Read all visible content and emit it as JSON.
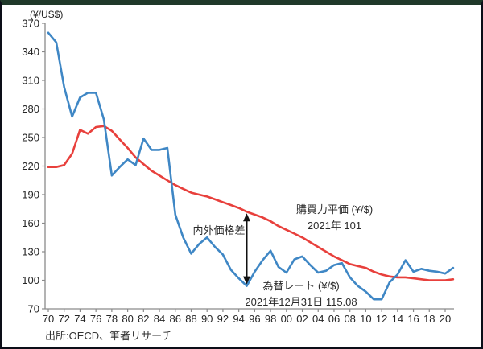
{
  "source": "出所:OECD、筆者リサーチ",
  "chart_data": {
    "type": "line",
    "title": "",
    "unit_label": "(¥/US$)",
    "xlabel": "",
    "ylabel": "(¥/US$)",
    "grid": false,
    "legend_position": "inline-annotations",
    "ylim": [
      70,
      370
    ],
    "y_ticks": [
      70,
      100,
      130,
      160,
      190,
      220,
      250,
      280,
      310,
      340,
      370
    ],
    "x_tick_labels": [
      "70",
      "72",
      "74",
      "76",
      "78",
      "80",
      "82",
      "84",
      "86",
      "88",
      "90",
      "92",
      "94",
      "96",
      "98",
      "00",
      "02",
      "04",
      "06",
      "08",
      "10",
      "12",
      "14",
      "16",
      "18",
      "20"
    ],
    "x": [
      1970,
      1971,
      1972,
      1973,
      1974,
      1975,
      1976,
      1977,
      1978,
      1979,
      1980,
      1981,
      1982,
      1983,
      1984,
      1985,
      1986,
      1987,
      1988,
      1989,
      1990,
      1991,
      1992,
      1993,
      1994,
      1995,
      1996,
      1997,
      1998,
      1999,
      2000,
      2001,
      2002,
      2003,
      2004,
      2005,
      2006,
      2007,
      2008,
      2009,
      2010,
      2011,
      2012,
      2013,
      2014,
      2015,
      2016,
      2017,
      2018,
      2019,
      2020,
      2021
    ],
    "series": [
      {
        "name": "購買力平価 (¥/$)",
        "color": "#e8403c",
        "values": [
          219,
          219,
          221,
          233,
          258,
          254,
          261,
          262,
          257,
          248,
          239,
          229,
          222,
          215,
          210,
          205,
          200,
          196,
          192,
          190,
          188,
          185,
          182,
          179,
          176,
          172,
          169,
          166,
          162,
          157,
          153,
          149,
          145,
          140,
          135,
          130,
          125,
          121,
          117,
          115,
          113,
          109,
          106,
          104,
          103,
          103,
          102,
          101,
          100,
          100,
          100,
          101
        ]
      },
      {
        "name": "為替レート (¥/$)",
        "color": "#3f87c5",
        "values": [
          360,
          350,
          303,
          272,
          292,
          297,
          297,
          269,
          210,
          219,
          227,
          221,
          249,
          237,
          237,
          239,
          169,
          145,
          128,
          138,
          145,
          135,
          127,
          111,
          102,
          94,
          109,
          121,
          131,
          114,
          108,
          122,
          125,
          116,
          108,
          110,
          116,
          118,
          103,
          94,
          88,
          80,
          80,
          98,
          106,
          121,
          109,
          112,
          110,
          109,
          107,
          113
        ]
      }
    ],
    "annotations": {
      "ppp_line1": "購買力平価 (¥/$)",
      "ppp_line2": "2021年 101",
      "fx_line1": "為替レート (¥/$)",
      "fx_line2": "2021年12月31日 115.08",
      "gap_label": "内外価格差",
      "gap_arrow_year": 1995
    }
  }
}
